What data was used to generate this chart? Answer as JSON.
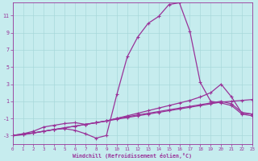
{
  "xlabel": "Windchill (Refroidissement éolien,°C)",
  "xlim": [
    0,
    23
  ],
  "ylim": [
    -4,
    12.5
  ],
  "yticks": [
    -3,
    -1,
    1,
    3,
    5,
    7,
    9,
    11
  ],
  "xticks": [
    0,
    1,
    2,
    3,
    4,
    5,
    6,
    7,
    8,
    9,
    10,
    11,
    12,
    13,
    14,
    15,
    16,
    17,
    18,
    19,
    20,
    21,
    22,
    23
  ],
  "bg_color": "#c6ecee",
  "line_color": "#993399",
  "grid_color": "#a8d8da",
  "lines": [
    {
      "x": [
        0,
        1,
        2,
        3,
        4,
        5,
        6,
        7,
        8,
        9,
        10,
        11,
        12,
        13,
        14,
        15,
        16,
        17,
        18,
        19,
        20,
        21,
        22,
        23
      ],
      "y": [
        -3,
        -2.8,
        -2.7,
        -2.5,
        -2.3,
        -2.2,
        -2.4,
        -2.8,
        -3.3,
        -3.0,
        1.8,
        6.2,
        8.5,
        10.1,
        10.9,
        12.3,
        12.5,
        9.2,
        3.2,
        1.0,
        0.8,
        0.5,
        -0.5,
        -0.7
      ]
    },
    {
      "x": [
        0,
        1,
        2,
        3,
        4,
        5,
        6,
        7,
        8,
        9,
        10,
        11,
        12,
        13,
        14,
        15,
        16,
        17,
        18,
        19,
        20,
        21,
        22,
        23
      ],
      "y": [
        -3,
        -2.8,
        -2.5,
        -2.0,
        -1.8,
        -1.6,
        -1.5,
        -1.7,
        -1.5,
        -1.3,
        -1.0,
        -0.7,
        -0.4,
        -0.1,
        0.2,
        0.5,
        0.8,
        1.1,
        1.5,
        2.0,
        3.0,
        1.5,
        -0.4,
        -0.5
      ]
    },
    {
      "x": [
        0,
        1,
        2,
        3,
        4,
        5,
        6,
        7,
        8,
        9,
        10,
        11,
        12,
        13,
        14,
        15,
        16,
        17,
        18,
        19,
        20,
        21,
        22,
        23
      ],
      "y": [
        -3,
        -2.9,
        -2.7,
        -2.5,
        -2.3,
        -2.1,
        -1.9,
        -1.7,
        -1.5,
        -1.3,
        -1.1,
        -0.9,
        -0.7,
        -0.5,
        -0.3,
        -0.1,
        0.1,
        0.3,
        0.5,
        0.7,
        0.9,
        1.0,
        1.1,
        1.2
      ]
    },
    {
      "x": [
        0,
        1,
        2,
        3,
        4,
        5,
        6,
        7,
        8,
        9,
        10,
        11,
        12,
        13,
        14,
        15,
        16,
        17,
        18,
        19,
        20,
        21,
        22,
        23
      ],
      "y": [
        -3,
        -2.9,
        -2.7,
        -2.5,
        -2.3,
        -2.1,
        -1.9,
        -1.7,
        -1.5,
        -1.3,
        -1.0,
        -0.8,
        -0.6,
        -0.4,
        -0.2,
        0.0,
        0.2,
        0.4,
        0.6,
        0.8,
        1.0,
        0.7,
        -0.3,
        -0.5
      ]
    }
  ]
}
